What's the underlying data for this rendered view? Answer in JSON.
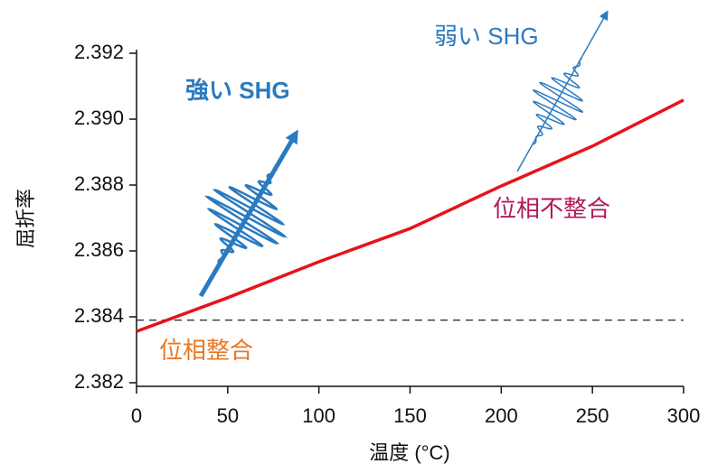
{
  "chart_data": {
    "type": "line",
    "x_label": "温度 (°C)",
    "y_label": "屈折率",
    "x": [
      0,
      50,
      100,
      150,
      200,
      250,
      300
    ],
    "values": [
      2.38356,
      2.38458,
      2.38567,
      2.38668,
      2.38797,
      2.38918,
      2.39058
    ],
    "color": "#e8131a",
    "reference_line": 2.3839,
    "xlim": [
      0,
      300
    ],
    "xticks": [
      0,
      50,
      100,
      150,
      200,
      250,
      300
    ],
    "ylim": [
      2.382,
      2.392
    ],
    "yticks": [
      2.382,
      2.384,
      2.386,
      2.388,
      {
        "value": 2.39,
        "label": "2.390"
      },
      2.392
    ],
    "annotations": [
      {
        "text": "強い SHG",
        "color": "#2a7ac0"
      },
      {
        "text": "弱い SHG",
        "color": "#2a7ac0"
      },
      {
        "text": "位相不整合",
        "color": "#b0195a"
      },
      {
        "text": "位相整合",
        "color": "#e87722"
      }
    ]
  }
}
